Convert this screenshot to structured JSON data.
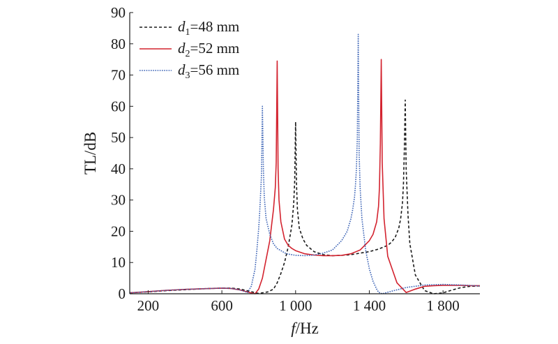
{
  "chart_data": {
    "type": "line",
    "xlabel_italic": "f",
    "xlabel_rest": "/Hz",
    "ylabel": "TL/dB",
    "xlim": [
      100,
      2000
    ],
    "ylim": [
      0,
      90
    ],
    "xticks": [
      {
        "value": 200,
        "label": "200"
      },
      {
        "value": 600,
        "label": "600"
      },
      {
        "value": 1000,
        "label": "1 000"
      },
      {
        "value": 1400,
        "label": "1 400"
      },
      {
        "value": 1800,
        "label": "1 800"
      }
    ],
    "yticks": [
      0,
      10,
      20,
      30,
      40,
      50,
      60,
      70,
      80,
      90
    ],
    "legend_position": "top-left",
    "series": [
      {
        "name": "d1=48 mm",
        "legend_var": "d",
        "legend_sub": "1",
        "legend_rest": "=48 mm",
        "color": "#1a1a1a",
        "dash": "4 3",
        "x": [
          100,
          200,
          300,
          400,
          500,
          600,
          650,
          700,
          750,
          800,
          850,
          880,
          900,
          920,
          940,
          960,
          980,
          990,
          995,
          1000,
          1005,
          1010,
          1020,
          1040,
          1060,
          1080,
          1100,
          1150,
          1200,
          1250,
          1300,
          1350,
          1400,
          1450,
          1500,
          1520,
          1540,
          1560,
          1570,
          1580,
          1585,
          1590,
          1595,
          1600,
          1610,
          1620,
          1650,
          1700,
          1750,
          1800,
          1850,
          1900,
          1950,
          2000
        ],
        "y": [
          0.3,
          0.6,
          1.0,
          1.3,
          1.6,
          1.8,
          1.8,
          1.5,
          0.8,
          0.1,
          0.6,
          1.5,
          3.5,
          6.5,
          10.0,
          15.0,
          22.0,
          29.0,
          36.0,
          55.0,
          35.0,
          27.0,
          21.0,
          17.5,
          15.5,
          14.5,
          13.5,
          12.5,
          12.2,
          12.3,
          12.5,
          13.0,
          13.5,
          14.3,
          15.5,
          16.5,
          18.0,
          21.0,
          24.0,
          29.0,
          35.0,
          46.0,
          62.0,
          40.0,
          25.0,
          16.0,
          6.0,
          1.0,
          0.0,
          0.3,
          1.2,
          2.0,
          2.4,
          2.5
        ]
      },
      {
        "name": "d2=52 mm",
        "legend_var": "d",
        "legend_sub": "2",
        "legend_rest": "=52 mm",
        "color": "#d3232f",
        "dash": "",
        "x": [
          100,
          200,
          300,
          400,
          500,
          600,
          650,
          700,
          750,
          780,
          800,
          820,
          840,
          860,
          870,
          880,
          890,
          895,
          900,
          905,
          910,
          920,
          940,
          960,
          980,
          1000,
          1050,
          1100,
          1150,
          1200,
          1250,
          1300,
          1350,
          1400,
          1420,
          1440,
          1450,
          1455,
          1460,
          1465,
          1470,
          1480,
          1500,
          1550,
          1600,
          1650,
          1700,
          1750,
          1800,
          1850,
          1900,
          1950,
          2000
        ],
        "y": [
          0.3,
          0.7,
          1.1,
          1.4,
          1.6,
          1.8,
          1.7,
          1.2,
          0.4,
          0.0,
          1.5,
          5.0,
          11.0,
          17.0,
          22.0,
          27.0,
          34.0,
          42.0,
          74.5,
          40.0,
          30.0,
          23.0,
          17.5,
          15.5,
          14.5,
          13.8,
          12.8,
          12.4,
          12.2,
          12.2,
          12.3,
          12.8,
          14.0,
          17.0,
          19.0,
          23.0,
          28.0,
          34.0,
          48.0,
          75.0,
          42.0,
          24.0,
          12.0,
          3.5,
          0.4,
          1.5,
          2.4,
          2.6,
          2.7,
          2.7,
          2.7,
          2.6,
          2.6
        ]
      },
      {
        "name": "d3=56 mm",
        "legend_var": "d",
        "legend_sub": "3",
        "legend_rest": "=56 mm",
        "color": "#3a62b5",
        "dash": "1.6 1.6",
        "x": [
          100,
          200,
          300,
          400,
          500,
          600,
          650,
          700,
          720,
          740,
          760,
          780,
          790,
          800,
          805,
          810,
          815,
          820,
          825,
          830,
          840,
          860,
          880,
          900,
          950,
          1000,
          1050,
          1100,
          1150,
          1200,
          1250,
          1280,
          1300,
          1310,
          1320,
          1325,
          1330,
          1335,
          1340,
          1345,
          1350,
          1360,
          1380,
          1400,
          1420,
          1440,
          1450,
          1470,
          1500,
          1600,
          1700,
          1800,
          1900,
          2000
        ],
        "y": [
          0.3,
          0.7,
          1.1,
          1.4,
          1.6,
          1.8,
          1.7,
          1.2,
          0.8,
          0.4,
          2.5,
          8.0,
          14.0,
          21.0,
          26.0,
          32.0,
          38.0,
          60.0,
          40.0,
          31.0,
          24.0,
          19.0,
          16.0,
          14.5,
          12.8,
          12.3,
          12.2,
          12.4,
          13.0,
          14.0,
          17.0,
          20.0,
          24.0,
          27.0,
          31.0,
          35.0,
          40.0,
          50.0,
          83.0,
          45.0,
          34.0,
          24.0,
          14.0,
          8.0,
          4.0,
          1.5,
          0.5,
          0.0,
          0.5,
          2.0,
          2.8,
          3.0,
          2.8,
          2.5
        ]
      }
    ]
  }
}
